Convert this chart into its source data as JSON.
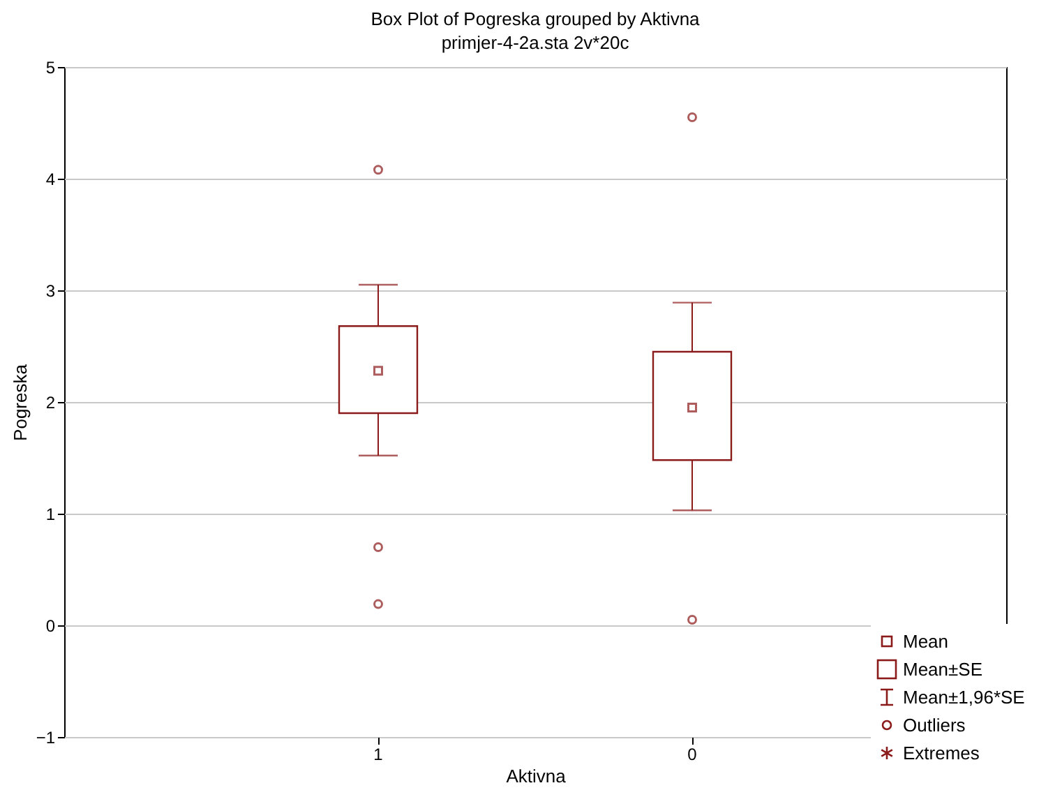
{
  "chart_data": {
    "type": "box",
    "title": "Box Plot of Pogreska grouped by  Aktivna",
    "subtitle": "primjer-4-2a.sta 2v*20c",
    "xlabel": "Aktivna",
    "ylabel": "Pogreska",
    "categories": [
      "1",
      "0"
    ],
    "boxes": [
      {
        "low": 1.52,
        "q1": 1.9,
        "q3": 2.68,
        "high": 3.05,
        "mean": 2.28,
        "outliers": [
          4.08,
          0.7,
          0.19
        ]
      },
      {
        "low": 1.03,
        "q1": 1.48,
        "q3": 2.45,
        "high": 2.89,
        "mean": 1.95,
        "outliers": [
          4.55,
          0.05
        ]
      }
    ],
    "color": "#8b1a1a",
    "ylim": [
      -1,
      5
    ],
    "yticks": [
      -1,
      0,
      1,
      2,
      3,
      4,
      5
    ],
    "grid": "y",
    "annotations": [
      "Mean",
      "Mean±SE",
      "Mean±1,96*SE",
      "Outliers",
      "Extremes"
    ]
  }
}
